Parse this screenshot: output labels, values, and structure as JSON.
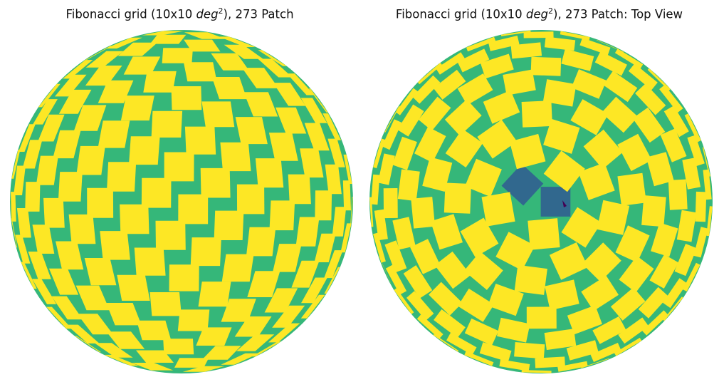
{
  "colors": {
    "background": "#35b779",
    "patch": "#fde725",
    "overlap": "#31688e",
    "multi_overlap": "#440154"
  },
  "chart_data": [
    {
      "type": "map",
      "title": {
        "prefix": "Fibonacci grid (10x10 ",
        "unit": "deg",
        "exp": "2",
        "suffix": "), 273 Patch"
      },
      "projection": "orthographic-side",
      "patch_count": 273,
      "patch_size_deg": [
        10,
        10
      ]
    },
    {
      "type": "map",
      "title": {
        "prefix": "Fibonacci grid (10x10 ",
        "unit": "deg",
        "exp": "2",
        "suffix": "), 273 Patch: Top View"
      },
      "projection": "orthographic-polar",
      "patch_count": 273,
      "patch_size_deg": [
        10,
        10
      ]
    }
  ]
}
